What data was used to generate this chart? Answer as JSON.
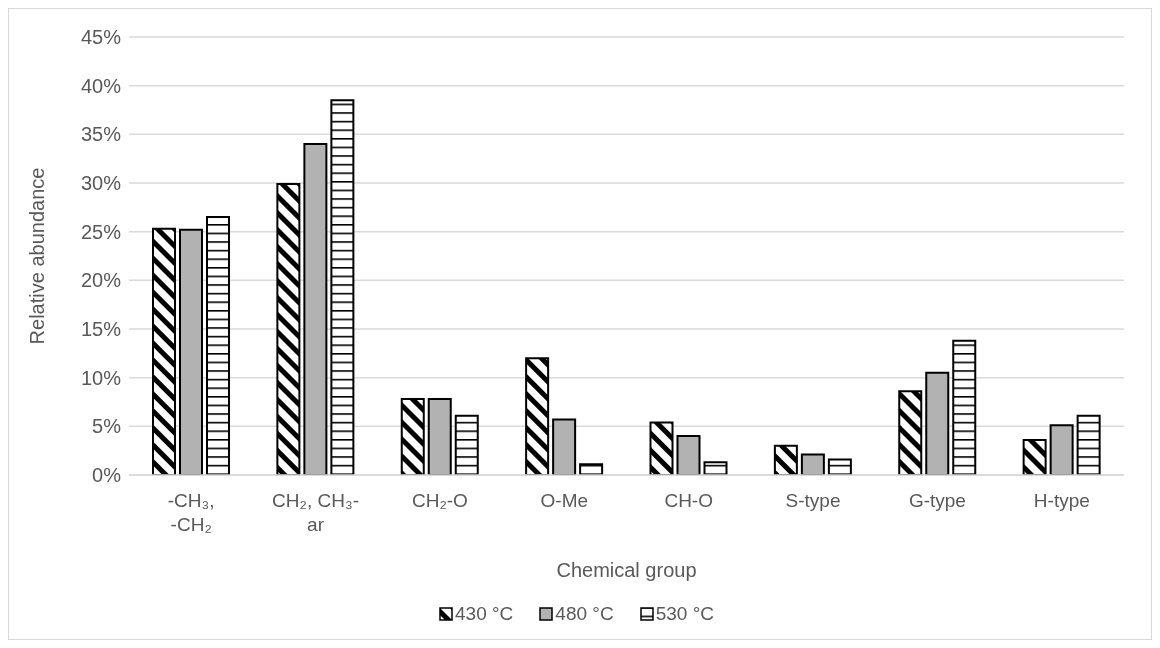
{
  "chart_data": {
    "type": "bar",
    "xlabel": "Chemical group",
    "ylabel": "Relative abundance",
    "categories": [
      "-CH₃, -CH₂",
      "CH₂, CH₃-ar",
      "CH₂-O",
      "O-Me",
      "CH-O",
      "S-type",
      "G-type",
      "H-type"
    ],
    "series": [
      {
        "name": "430 °C",
        "color": "#000000",
        "values": [
          25.3,
          29.9,
          7.8,
          12.0,
          5.4,
          3.0,
          8.6,
          3.6
        ]
      },
      {
        "name": "480 °C",
        "color": "#b2b2b2",
        "values": [
          25.2,
          34.0,
          7.8,
          5.7,
          4.0,
          2.1,
          10.5,
          5.1
        ]
      },
      {
        "name": "530 °C",
        "color": "#000000",
        "values": [
          26.5,
          38.5,
          6.1,
          1.1,
          1.3,
          1.6,
          13.8,
          6.1
        ]
      }
    ],
    "ylim": [
      0,
      45
    ],
    "yticks": [
      {
        "value": 0,
        "label": "0%"
      },
      {
        "value": 5,
        "label": "5%"
      },
      {
        "value": 10,
        "label": "10%"
      },
      {
        "value": 15,
        "label": "15%"
      },
      {
        "value": 20,
        "label": "20%"
      },
      {
        "value": 25,
        "label": "25%"
      },
      {
        "value": 30,
        "label": "30%"
      },
      {
        "value": 35,
        "label": "35%"
      },
      {
        "value": 40,
        "label": "40%"
      },
      {
        "value": 45,
        "label": "45%"
      }
    ],
    "grid": "y",
    "legend": "bottom"
  }
}
